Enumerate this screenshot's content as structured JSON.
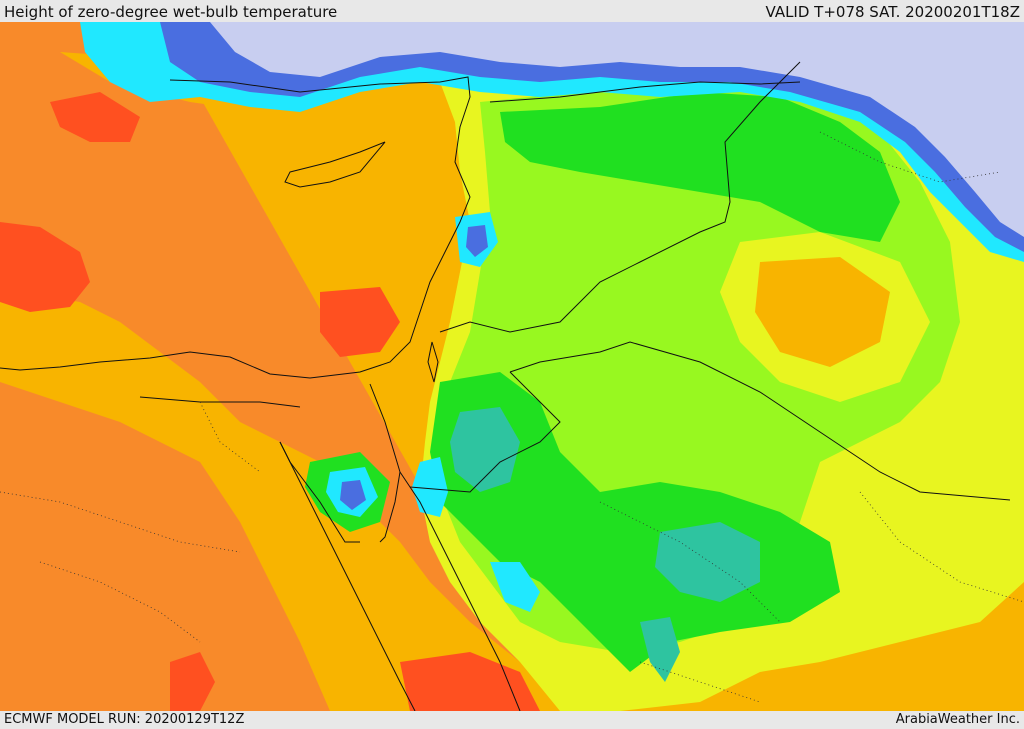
{
  "header": {
    "title": "Height of zero-degree wet-bulb temperature",
    "valid": "VALID T+078 SAT. 20200201T18Z"
  },
  "footer": {
    "model_run": "ECMWF MODEL RUN: 20200129T12Z",
    "credit": "ArabiaWeather Inc."
  },
  "palette": {
    "snow": "#c8cef0",
    "deep_blue": "#4a6ee0",
    "cyan": "#20e8ff",
    "teal": "#2ec4a0",
    "green": "#20e020",
    "light_green": "#98f820",
    "yellow": "#e8f520",
    "amber": "#f8b400",
    "orange": "#f88a2a",
    "red_orange": "#ff5020",
    "border_line": "#111111"
  }
}
